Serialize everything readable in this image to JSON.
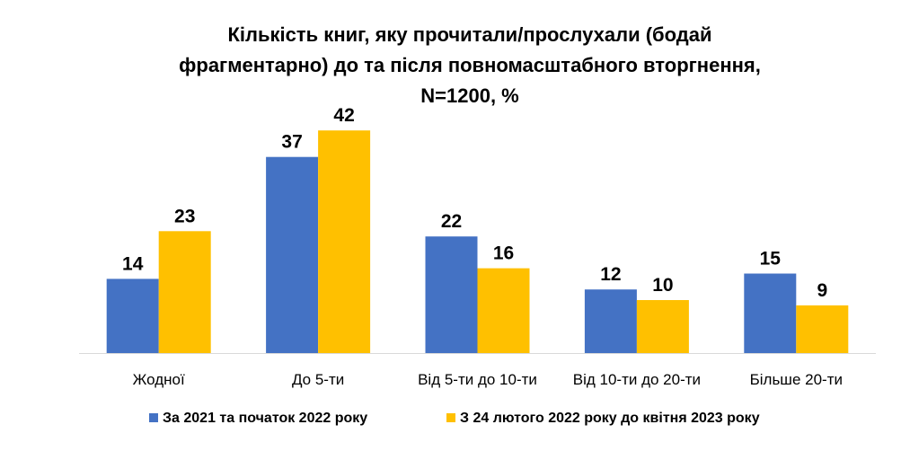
{
  "chart_data": {
    "type": "bar",
    "title_lines": [
      "Кількість книг, яку прочитали/прослухали (бодай",
      "фрагментарно) до та після повномасштабного вторгнення,",
      "N=1200, %"
    ],
    "categories": [
      "Жодної",
      "До 5-ти",
      "Від 5-ти до 10-ти",
      "Від 10-ти до 20-ти",
      "Більше 20-ти"
    ],
    "series": [
      {
        "name": "За 2021 та початок 2022 року",
        "color": "#4472C4",
        "values": [
          14,
          37,
          22,
          12,
          15
        ]
      },
      {
        "name": "З 24 лютого 2022 року до квітня 2023 року",
        "color": "#FFC000",
        "values": [
          23,
          42,
          16,
          10,
          9
        ]
      }
    ],
    "ylim": [
      0,
      45
    ],
    "grid": false,
    "legend_position": "bottom",
    "data_labels": true
  }
}
